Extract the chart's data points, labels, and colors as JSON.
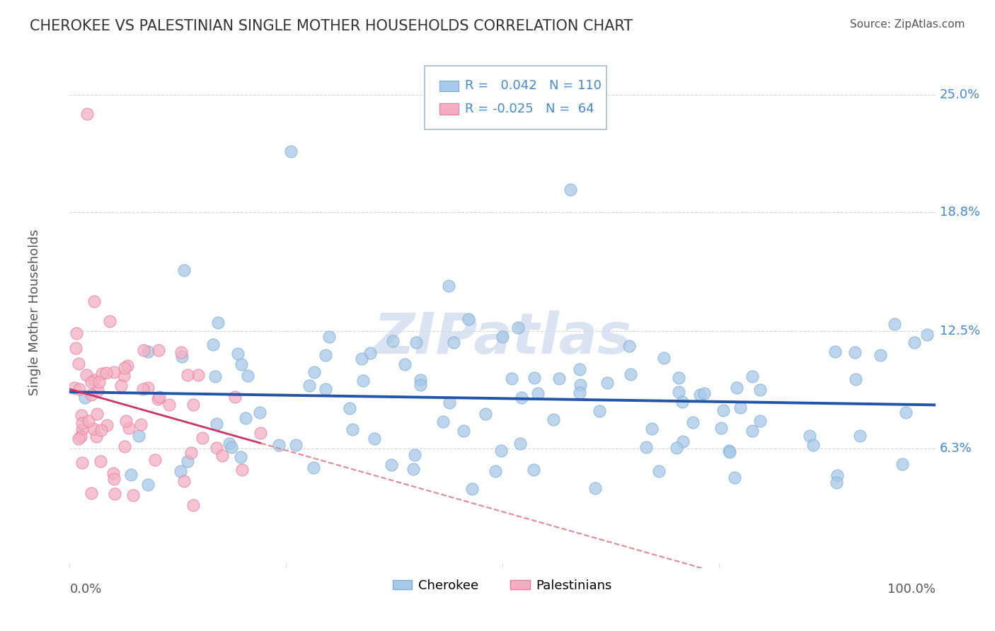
{
  "title": "CHEROKEE VS PALESTINIAN SINGLE MOTHER HOUSEHOLDS CORRELATION CHART",
  "source": "Source: ZipAtlas.com",
  "ylabel": "Single Mother Households",
  "cherokee_R": 0.042,
  "cherokee_N": 110,
  "palestinian_R": -0.025,
  "palestinian_N": 64,
  "cherokee_color": "#a8c8e8",
  "cherokee_edge": "#7aadd4",
  "palestinian_color": "#f4afc4",
  "palestinian_edge": "#e87a9a",
  "trend_cherokee_color": "#2255aa",
  "trend_palestinian_solid_color": "#cc3366",
  "trend_palestinian_dash_color": "#e08898",
  "watermark": "ZIPatlas",
  "watermark_color": "#ccd8ee",
  "grid_color": "#cccccc",
  "title_color": "#333333",
  "label_color": "#555555",
  "tick_color": "#4488cc",
  "ytick_vals": [
    0.0,
    0.063,
    0.125,
    0.188,
    0.25
  ],
  "ytick_labels": [
    "",
    "6.3%",
    "12.5%",
    "18.8%",
    "25.0%"
  ],
  "xlim": [
    0.0,
    1.0
  ],
  "ylim": [
    0.0,
    0.27
  ],
  "cherokee_seed": 12345,
  "pal_seed": 99
}
